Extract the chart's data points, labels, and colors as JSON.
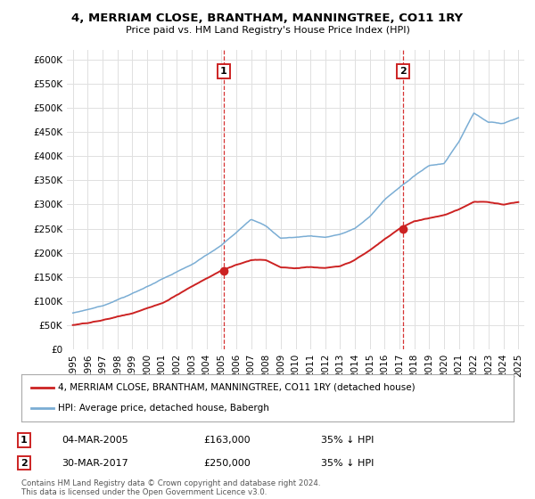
{
  "title": "4, MERRIAM CLOSE, BRANTHAM, MANNINGTREE, CO11 1RY",
  "subtitle": "Price paid vs. HM Land Registry's House Price Index (HPI)",
  "ylim": [
    0,
    620000
  ],
  "yticks": [
    0,
    50000,
    100000,
    150000,
    200000,
    250000,
    300000,
    350000,
    400000,
    450000,
    500000,
    550000,
    600000
  ],
  "sale1": {
    "x": 2005.17,
    "price": 163000,
    "label": "1",
    "date_str": "04-MAR-2005",
    "pct": "35% ↓ HPI"
  },
  "sale2": {
    "x": 2017.23,
    "price": 250000,
    "label": "2",
    "date_str": "30-MAR-2017",
    "pct": "35% ↓ HPI"
  },
  "hpi_color": "#7aadd4",
  "price_color": "#cc2222",
  "vline_color": "#cc0000",
  "legend_label_price": "4, MERRIAM CLOSE, BRANTHAM, MANNINGTREE, CO11 1RY (detached house)",
  "legend_label_hpi": "HPI: Average price, detached house, Babergh",
  "footer": "Contains HM Land Registry data © Crown copyright and database right 2024.\nThis data is licensed under the Open Government Licence v3.0.",
  "xticklabels": [
    "1995",
    "1996",
    "1997",
    "1998",
    "1999",
    "2000",
    "2001",
    "2002",
    "2003",
    "2004",
    "2005",
    "2006",
    "2007",
    "2008",
    "2009",
    "2010",
    "2011",
    "2012",
    "2013",
    "2014",
    "2015",
    "2016",
    "2017",
    "2018",
    "2019",
    "2020",
    "2021",
    "2022",
    "2023",
    "2024",
    "2025"
  ]
}
